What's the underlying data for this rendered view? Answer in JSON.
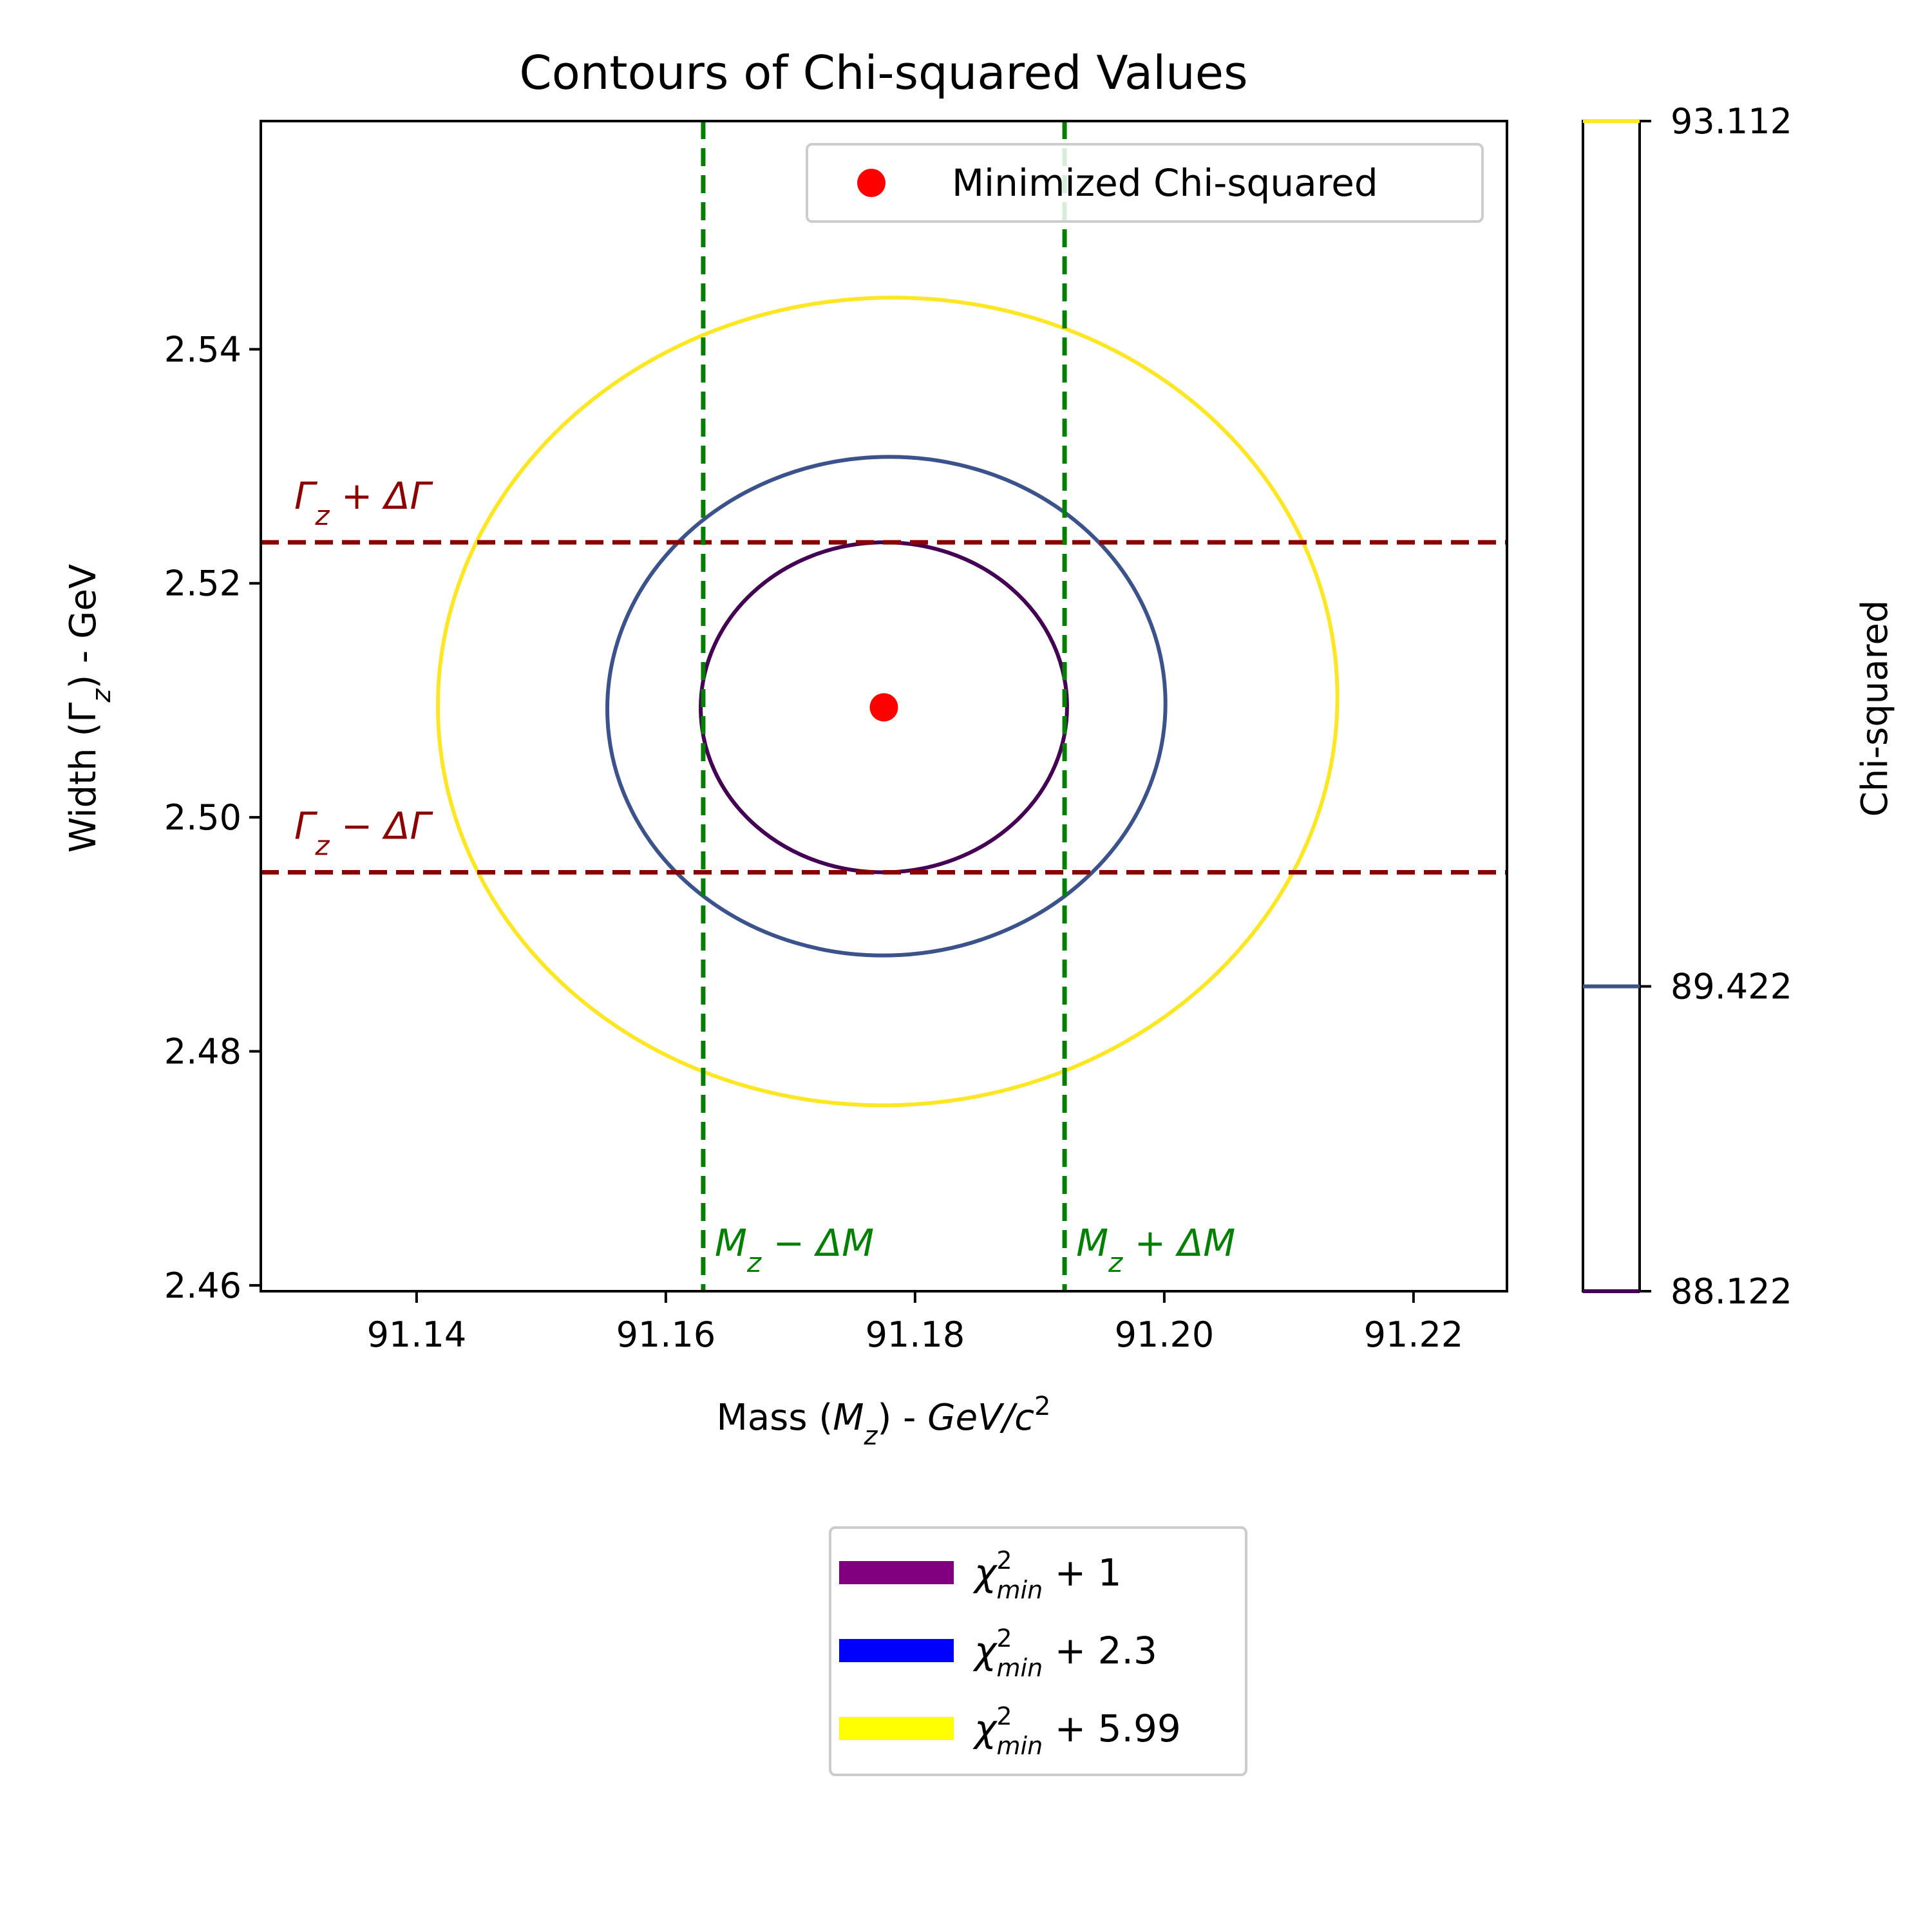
{
  "chart_data": {
    "type": "contour",
    "title": "Contours of Chi-squared Values",
    "xlabel": "Mass (M_z) - GeV/c^2",
    "ylabel": "Width (Γ_z) - GeV",
    "xlim": [
      91.1275,
      91.2275
    ],
    "ylim": [
      2.4595,
      2.5595
    ],
    "xticks": [
      91.14,
      91.16,
      91.18,
      91.2,
      91.22
    ],
    "xtick_labels": [
      "91.14",
      "91.16",
      "91.18",
      "91.20",
      "91.22"
    ],
    "yticks": [
      2.46,
      2.48,
      2.5,
      2.52,
      2.54
    ],
    "ytick_labels": [
      "2.46",
      "2.48",
      "2.50",
      "2.52",
      "2.54"
    ],
    "minimum": {
      "x": 91.1775,
      "y": 2.5094,
      "label": "Minimized Chi-squared",
      "color": "#ff0000"
    },
    "contours": [
      {
        "level": 88.122,
        "color": "#440154",
        "cx": 91.1775,
        "cy": 2.5094,
        "rx": 0.0147,
        "ry": 0.0141,
        "tilt": -0.0003
      },
      {
        "level": 89.422,
        "color": "#3b528b",
        "cx": 91.1777,
        "cy": 2.5095,
        "rx": 0.0224,
        "ry": 0.0213,
        "tilt": -0.0012
      },
      {
        "level": 93.112,
        "color": "#fde725",
        "cx": 91.1778,
        "cy": 2.5099,
        "rx": 0.0361,
        "ry": 0.0345,
        "tilt": -0.002
      }
    ],
    "vlines": [
      {
        "x": 91.163,
        "label": "M_z − ΔM",
        "color": "#008000"
      },
      {
        "x": 91.192,
        "label": "M_z + ΔM",
        "color": "#008000"
      }
    ],
    "hlines": [
      {
        "y": 2.5235,
        "label": "Γ_z + ΔΓ",
        "color": "#8b0000"
      },
      {
        "y": 2.4953,
        "label": "Γ_z − ΔΓ",
        "color": "#8b0000"
      }
    ],
    "colorbar": {
      "label": "Chi-squared",
      "ticks": [
        "88.122",
        "89.422",
        "93.112"
      ],
      "values": [
        88.122,
        89.422,
        93.112
      ]
    },
    "legend_inside": {
      "placement": "top-right",
      "entries": [
        "Minimized Chi-squared"
      ]
    },
    "legend_outside": {
      "placement": "below",
      "entries": [
        {
          "base": "χ",
          "sup": "2",
          "sub": "min",
          "rest": " + 1",
          "color": "#800080"
        },
        {
          "base": "χ",
          "sup": "2",
          "sub": "min",
          "rest": " + 2.3",
          "color": "#0000ff"
        },
        {
          "base": "χ",
          "sup": "2",
          "sub": "min",
          "rest": " + 5.99",
          "color": "#ffff00"
        }
      ]
    }
  }
}
